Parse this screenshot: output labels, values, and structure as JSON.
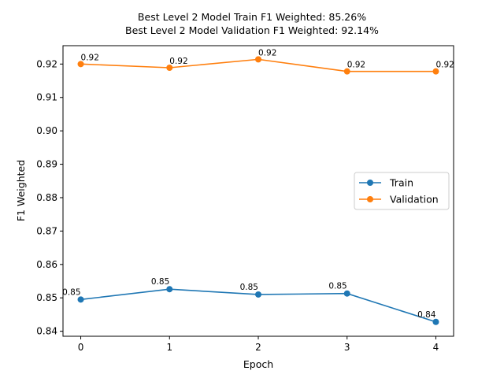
{
  "chart_data": {
    "type": "line",
    "title": "Best Level 2 Model Train F1 Weighted: 85.26%",
    "subtitle": "Best Level 2 Model Validation F1 Weighted: 92.14%",
    "xlabel": "Epoch",
    "ylabel": "F1 Weighted",
    "x": [
      0,
      1,
      2,
      3,
      4
    ],
    "xticks": [
      "0",
      "1",
      "2",
      "3",
      "4"
    ],
    "yticks": [
      "0.84",
      "0.85",
      "0.86",
      "0.87",
      "0.88",
      "0.89",
      "0.90",
      "0.91",
      "0.92"
    ],
    "xlim": [
      -0.2,
      4.2
    ],
    "ylim": [
      0.8385,
      0.9255
    ],
    "grid": false,
    "legend_position": "center-right",
    "series": [
      {
        "name": "Train",
        "color": "#1f77b4",
        "values": [
          0.8495,
          0.8526,
          0.851,
          0.8513,
          0.8428
        ],
        "labels": [
          "0.85",
          "0.85",
          "0.85",
          "0.85",
          "0.84"
        ]
      },
      {
        "name": "Validation",
        "color": "#ff7f0e",
        "values": [
          0.92,
          0.9189,
          0.9214,
          0.9178,
          0.9178
        ],
        "labels": [
          "0.92",
          "0.92",
          "0.92",
          "0.92",
          "0.92"
        ]
      }
    ]
  }
}
